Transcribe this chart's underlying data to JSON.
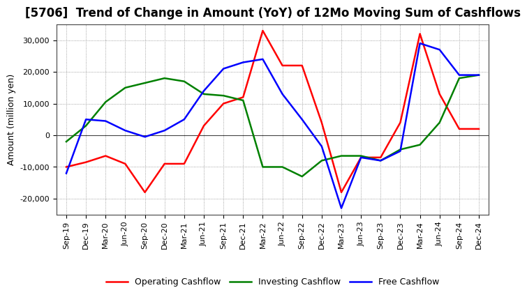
{
  "title": "[5706]  Trend of Change in Amount (YoY) of 12Mo Moving Sum of Cashflows",
  "ylabel": "Amount (million yen)",
  "x_labels": [
    "Sep-19",
    "Dec-19",
    "Mar-20",
    "Jun-20",
    "Sep-20",
    "Dec-20",
    "Mar-21",
    "Jun-21",
    "Sep-21",
    "Dec-21",
    "Mar-22",
    "Jun-22",
    "Sep-22",
    "Dec-22",
    "Mar-23",
    "Jun-23",
    "Sep-23",
    "Dec-23",
    "Mar-24",
    "Jun-24",
    "Sep-24",
    "Dec-24"
  ],
  "operating_cashflow": [
    -10000,
    -8500,
    -6500,
    -9000,
    -18000,
    -9000,
    -9000,
    3000,
    10000,
    12000,
    33000,
    22000,
    22000,
    4000,
    -18000,
    -7000,
    -7000,
    4000,
    32000,
    13000,
    2000,
    2000
  ],
  "investing_cashflow": [
    -2000,
    3000,
    10500,
    15000,
    16500,
    18000,
    17000,
    13000,
    12500,
    11000,
    -10000,
    -10000,
    -13000,
    -8000,
    -6500,
    -6500,
    -8000,
    -4500,
    -3000,
    4000,
    18000,
    19000
  ],
  "free_cashflow": [
    -12000,
    5000,
    4500,
    1500,
    -500,
    1500,
    5000,
    14000,
    21000,
    23000,
    24000,
    13000,
    5000,
    -3500,
    -23000,
    -7000,
    -8000,
    -5000,
    29000,
    27000,
    19000,
    19000
  ],
  "op_color": "#ff0000",
  "inv_color": "#008000",
  "free_color": "#0000ff",
  "ylim": [
    -25000,
    35000
  ],
  "yticks": [
    -20000,
    -10000,
    0,
    10000,
    20000,
    30000
  ],
  "bg_color": "#ffffff",
  "plot_bg_color": "#ffffff",
  "grid_color": "#888888",
  "title_fontsize": 12,
  "axis_fontsize": 9,
  "tick_fontsize": 8,
  "legend_fontsize": 9,
  "line_width": 1.8
}
